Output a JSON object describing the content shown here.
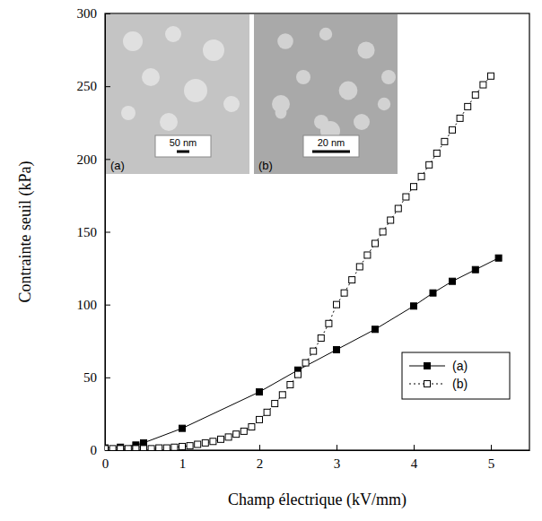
{
  "chart_data": {
    "type": "line",
    "x_label": "Champ électrique (kV/mm)",
    "y_label": "Contrainte seuil (kPa)",
    "xlim": [
      0,
      5.5
    ],
    "xticks": [
      0,
      1,
      2,
      3,
      4,
      5
    ],
    "ylim": [
      0,
      300
    ],
    "yticks": [
      0,
      50,
      100,
      150,
      200,
      250,
      300
    ],
    "grid": false,
    "legend": "bottom-right",
    "series": [
      {
        "name": "(a)",
        "color": "#000000",
        "marker": "square",
        "line_style": "solid",
        "x": [
          0,
          0.2,
          0.4,
          0.5,
          1,
          2,
          2.5,
          3,
          3.5,
          4,
          4.25,
          4.5,
          4.8,
          5.1
        ],
        "values": [
          1.5,
          2,
          3.5,
          5,
          15,
          40,
          55,
          69,
          83,
          99,
          108,
          116,
          124,
          132
        ]
      },
      {
        "name": "(b)",
        "color": "#000000",
        "marker": "square-open",
        "line_style": "dotted",
        "x": [
          0,
          0.1,
          0.2,
          0.3,
          0.4,
          0.5,
          0.6,
          0.7,
          0.8,
          0.9,
          1,
          1.1,
          1.2,
          1.3,
          1.4,
          1.5,
          1.6,
          1.7,
          1.8,
          1.9,
          2,
          2.1,
          2.2,
          2.3,
          2.4,
          2.5,
          2.6,
          2.7,
          2.8,
          2.9,
          3,
          3.1,
          3.2,
          3.3,
          3.4,
          3.5,
          3.6,
          3.7,
          3.8,
          3.9,
          4,
          4.1,
          4.2,
          4.3,
          4.4,
          4.5,
          4.6,
          4.7,
          4.8,
          4.9,
          5
        ],
        "values": [
          1,
          1,
          1,
          1,
          1,
          1,
          1,
          1.5,
          1.5,
          2,
          2.5,
          3,
          4,
          5,
          6,
          7.5,
          9,
          11,
          13,
          16,
          21,
          26,
          32,
          38,
          45,
          52,
          60,
          68,
          77,
          87,
          100,
          108,
          117,
          126,
          134,
          142,
          150,
          158,
          166,
          174,
          181,
          188,
          196,
          204,
          212,
          220,
          228,
          236,
          244,
          251,
          257
        ]
      }
    ],
    "insets": [
      {
        "label": "(a)",
        "scale_bar": "50 nm"
      },
      {
        "label": "(b)",
        "scale_bar": "20 nm"
      }
    ]
  }
}
